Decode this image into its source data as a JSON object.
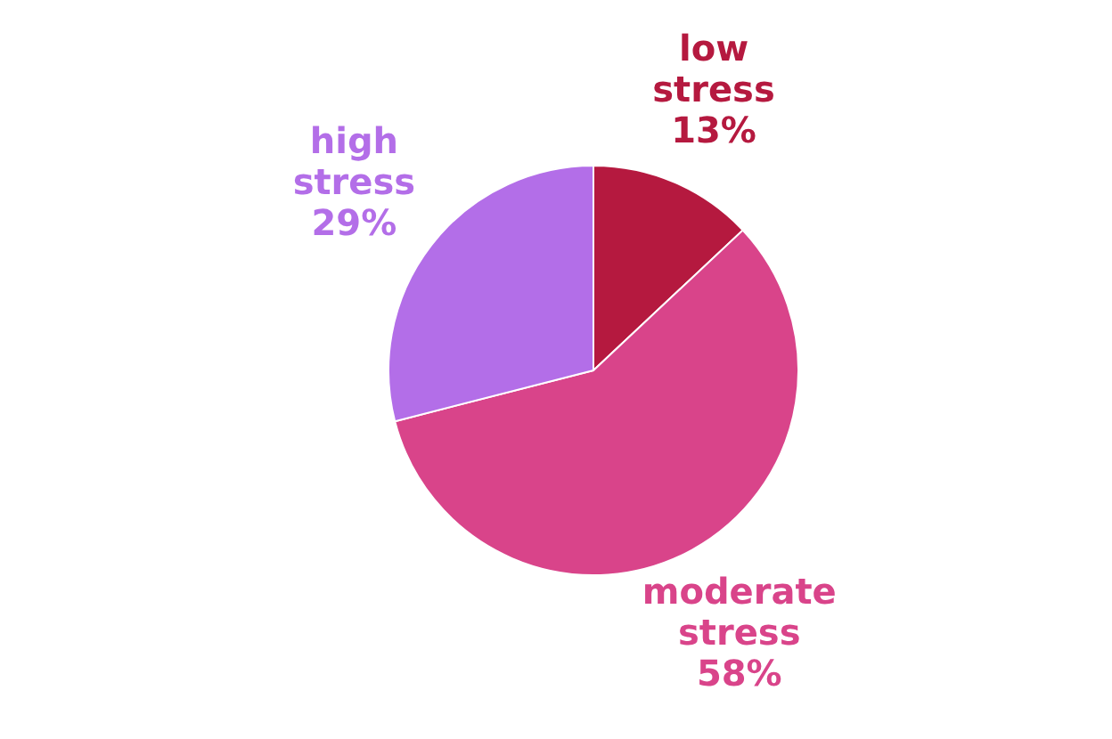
{
  "chart_data": {
    "type": "pie",
    "categories": [
      "low stress",
      "moderate stress",
      "high stress"
    ],
    "values": [
      13,
      58,
      29
    ],
    "colors": [
      "#b5193f",
      "#d9448a",
      "#b36ee8"
    ],
    "value_labels": [
      "13%",
      "58%",
      "29%"
    ],
    "legend": false
  }
}
